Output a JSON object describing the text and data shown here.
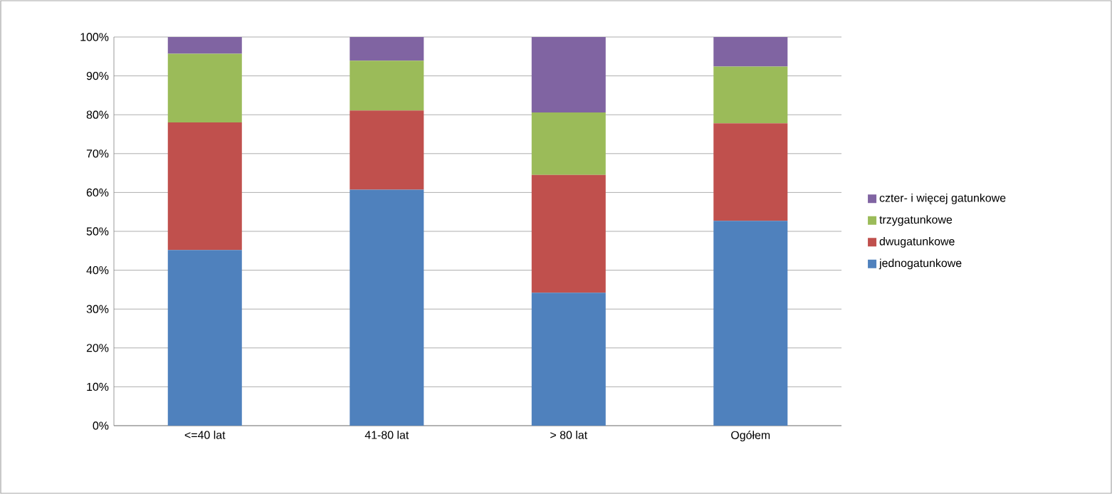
{
  "chart_data": {
    "type": "bar",
    "stacked": true,
    "categories": [
      "<=40 lat",
      "41-80 lat",
      "> 80 lat",
      "Ogółem"
    ],
    "series": [
      {
        "name": "jednogatunkowe",
        "color": "#4f81bd",
        "values": [
          45.2,
          60.7,
          34.2,
          52.7
        ]
      },
      {
        "name": "dwugatunkowe",
        "color": "#c0504d",
        "values": [
          32.8,
          20.4,
          30.3,
          25.1
        ]
      },
      {
        "name": "trzygatunkowe",
        "color": "#9bbb59",
        "values": [
          17.7,
          12.8,
          16.1,
          14.6
        ]
      },
      {
        "name": "czter- i więcej gatunkowe",
        "color": "#8064a2",
        "values": [
          4.3,
          6.1,
          19.4,
          7.6
        ]
      }
    ],
    "ylim": [
      0,
      100
    ],
    "yticks": [
      {
        "value": 0,
        "label": "0%"
      },
      {
        "value": 10,
        "label": "10%"
      },
      {
        "value": 20,
        "label": "20%"
      },
      {
        "value": 30,
        "label": "30%"
      },
      {
        "value": 40,
        "label": "40%"
      },
      {
        "value": 50,
        "label": "50%"
      },
      {
        "value": 60,
        "label": "60%"
      },
      {
        "value": 70,
        "label": "70%"
      },
      {
        "value": 80,
        "label": "80%"
      },
      {
        "value": 90,
        "label": "90%"
      },
      {
        "value": 100,
        "label": "100%"
      }
    ],
    "grid": "y",
    "legend": "right"
  }
}
